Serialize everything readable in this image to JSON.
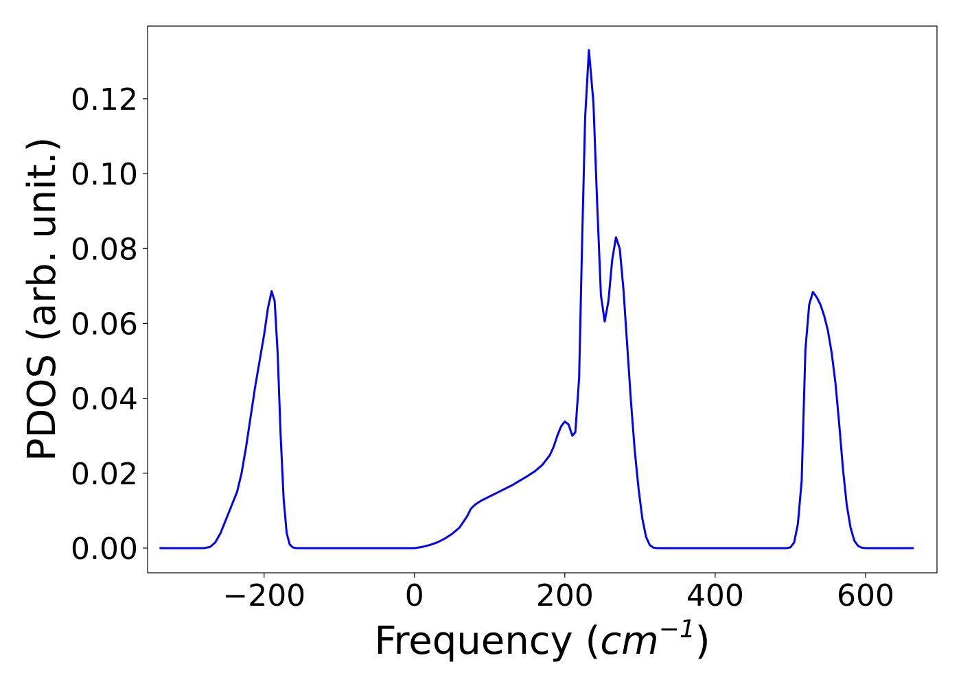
{
  "chart_data": {
    "type": "line",
    "title": "",
    "xlabel": {
      "prefix": "Frequency (",
      "math_base": "cm",
      "math_sup": "−1",
      "suffix": ")"
    },
    "ylabel": "PDOS (arb. unit.)",
    "xlim": [
      -355,
      695
    ],
    "ylim": [
      -0.0066,
      0.1394
    ],
    "xticks": [
      -200,
      0,
      200,
      400,
      600
    ],
    "xtick_labels": [
      "−200",
      "0",
      "200",
      "400",
      "600"
    ],
    "yticks": [
      0.0,
      0.02,
      0.04,
      0.06,
      0.08,
      0.1,
      0.12
    ],
    "ytick_labels": [
      "0.00",
      "0.02",
      "0.04",
      "0.06",
      "0.08",
      "0.10",
      "0.12"
    ],
    "grid": false,
    "legend": "none",
    "series": [
      {
        "color": "#0000ff",
        "x": [
          -338,
          -290,
          -280,
          -272,
          -265,
          -258,
          -250,
          -243,
          -236,
          -230,
          -224,
          -218,
          -212,
          -206,
          -200,
          -195,
          -190,
          -186,
          -182,
          -178,
          -174,
          -170,
          -166,
          -162,
          -158,
          -154,
          -150,
          -140,
          -100,
          -50,
          0,
          10,
          20,
          30,
          40,
          50,
          60,
          65,
          70,
          75,
          80,
          85,
          90,
          95,
          100,
          110,
          120,
          130,
          140,
          150,
          160,
          170,
          180,
          185,
          190,
          195,
          200,
          205,
          210,
          214,
          219,
          223,
          227,
          232,
          238,
          243,
          248,
          253,
          258,
          263,
          268,
          273,
          278,
          283,
          288,
          293,
          298,
          303,
          308,
          313,
          318,
          323,
          328,
          335,
          350,
          400,
          450,
          495,
          500,
          505,
          510,
          515,
          520,
          525,
          530,
          535,
          540,
          545,
          550,
          555,
          560,
          565,
          570,
          575,
          580,
          585,
          590,
          595,
          600,
          610,
          663
        ],
        "y": [
          0.0,
          0.0,
          0.0,
          0.0003,
          0.0015,
          0.004,
          0.008,
          0.0115,
          0.015,
          0.02,
          0.027,
          0.035,
          0.043,
          0.05,
          0.057,
          0.064,
          0.0686,
          0.066,
          0.052,
          0.03,
          0.013,
          0.004,
          0.001,
          0.0002,
          0.0,
          0.0,
          0.0,
          0.0,
          0.0,
          0.0,
          0.0,
          0.0003,
          0.0008,
          0.0015,
          0.0025,
          0.0038,
          0.0055,
          0.007,
          0.0085,
          0.0105,
          0.0115,
          0.0122,
          0.0128,
          0.0133,
          0.0138,
          0.0148,
          0.0158,
          0.0168,
          0.018,
          0.0192,
          0.0205,
          0.0222,
          0.0248,
          0.027,
          0.03,
          0.0325,
          0.0338,
          0.033,
          0.03,
          0.031,
          0.0455,
          0.082,
          0.115,
          0.133,
          0.119,
          0.092,
          0.0675,
          0.0605,
          0.066,
          0.077,
          0.083,
          0.08,
          0.069,
          0.054,
          0.039,
          0.026,
          0.016,
          0.008,
          0.003,
          0.0008,
          0.0001,
          0.0,
          0.0,
          0.0,
          0.0,
          0.0,
          0.0,
          0.0,
          0.0002,
          0.0015,
          0.0065,
          0.018,
          0.053,
          0.065,
          0.0684,
          0.067,
          0.065,
          0.062,
          0.058,
          0.052,
          0.044,
          0.033,
          0.021,
          0.0115,
          0.0055,
          0.002,
          0.0006,
          0.0001,
          0.0,
          0.0,
          0.0
        ]
      }
    ]
  }
}
